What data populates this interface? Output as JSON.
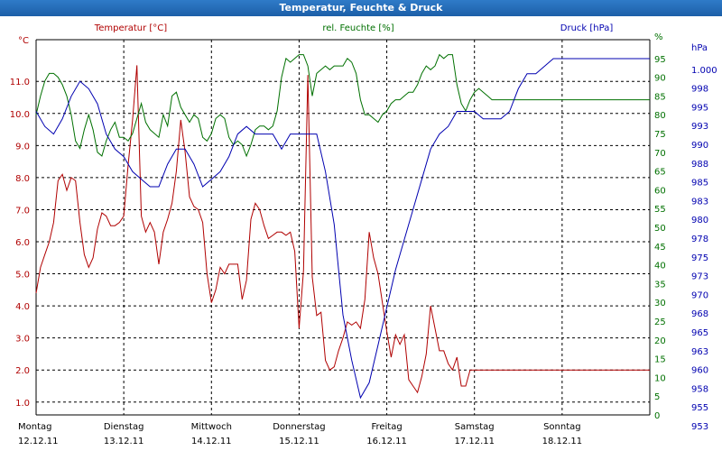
{
  "window": {
    "title": "Temperatur, Feuchte & Druck"
  },
  "colors": {
    "temperature": "#b00000",
    "humidity": "#007000",
    "pressure": "#0000b0",
    "grid": "#000000"
  },
  "chart_data": {
    "type": "line",
    "title": "Temperatur, Feuchte & Druck",
    "x_ticks": [
      {
        "day": "Montag",
        "date": "12.12.11"
      },
      {
        "day": "Dienstag",
        "date": "13.12.11"
      },
      {
        "day": "Mittwoch",
        "date": "14.12.11"
      },
      {
        "day": "Donnerstag",
        "date": "15.12.11"
      },
      {
        "day": "Freitag",
        "date": "16.12.11"
      },
      {
        "day": "Samstag",
        "date": "17.12.11"
      },
      {
        "day": "Sonntag",
        "date": "18.12.11"
      }
    ],
    "xlim": [
      0,
      7.0
    ],
    "grid": true,
    "axes": {
      "left": {
        "unit": "°C",
        "label": "Temperatur [°C]",
        "ylim": [
          0.6,
          12.3
        ],
        "ticks": [
          "1.0",
          "2.0",
          "3.0",
          "4.0",
          "5.0",
          "6.0",
          "7.0",
          "8.0",
          "9.0",
          "10.0",
          "11.0"
        ]
      },
      "middle": {
        "unit": "%",
        "label": "rel. Feuchte [%]",
        "ylim": [
          0,
          100
        ],
        "ticks": [
          "0",
          "5",
          "10",
          "15",
          "20",
          "25",
          "30",
          "35",
          "40",
          "45",
          "50",
          "55",
          "60",
          "65",
          "70",
          "75",
          "80",
          "85",
          "90",
          "95",
          "%"
        ]
      },
      "right": {
        "unit": "hPa",
        "label": "Druck [hPa]",
        "ticks": [
          "953",
          "955",
          "958",
          "960",
          "963",
          "965",
          "968",
          "970",
          "973",
          "975",
          "978",
          "980",
          "983",
          "985",
          "988",
          "990",
          "993",
          "995",
          "998",
          "1.000",
          "hPa"
        ]
      }
    },
    "series": [
      {
        "name": "Temperatur [°C]",
        "axis": "left",
        "x": [
          0.0,
          0.05,
          0.1,
          0.15,
          0.2,
          0.25,
          0.3,
          0.35,
          0.4,
          0.45,
          0.5,
          0.55,
          0.6,
          0.65,
          0.7,
          0.75,
          0.8,
          0.85,
          0.9,
          0.95,
          1.0,
          1.05,
          1.1,
          1.15,
          1.2,
          1.25,
          1.3,
          1.35,
          1.4,
          1.45,
          1.5,
          1.55,
          1.6,
          1.65,
          1.7,
          1.75,
          1.8,
          1.85,
          1.9,
          1.95,
          2.0,
          2.05,
          2.1,
          2.15,
          2.2,
          2.25,
          2.3,
          2.35,
          2.4,
          2.45,
          2.5,
          2.55,
          2.6,
          2.65,
          2.7,
          2.75,
          2.8,
          2.85,
          2.9,
          2.95,
          3.0,
          3.05,
          3.1,
          3.15,
          3.2,
          3.25,
          3.3,
          3.35,
          3.4,
          3.45,
          3.5,
          3.55,
          3.6,
          3.65,
          3.7,
          3.75,
          3.8,
          3.85,
          3.9,
          3.95,
          4.0,
          4.05,
          4.1,
          4.15,
          4.2,
          4.25,
          4.3,
          4.35,
          4.4,
          4.45,
          4.5,
          4.55,
          4.6,
          4.65,
          4.7,
          4.75,
          4.8,
          4.85,
          4.9,
          4.95,
          5.0,
          5.05,
          5.1,
          5.15,
          5.2,
          5.25,
          5.3,
          5.35,
          5.4,
          5.45,
          5.5,
          5.55,
          5.6,
          5.65,
          5.7,
          5.75,
          5.8,
          5.85,
          5.9,
          5.95,
          6.0,
          6.05,
          6.1,
          6.15,
          6.2,
          6.25,
          6.3,
          6.35,
          6.4,
          6.45,
          6.5,
          6.55,
          6.6,
          6.65,
          6.7,
          6.75,
          6.8,
          6.85,
          6.9,
          6.95,
          7.0
        ],
        "values": [
          4.4,
          5.2,
          5.6,
          6.0,
          6.6,
          7.9,
          8.1,
          7.6,
          8.0,
          7.9,
          6.6,
          5.6,
          5.2,
          5.5,
          6.4,
          6.9,
          6.8,
          6.5,
          6.5,
          6.6,
          6.8,
          8.4,
          9.8,
          11.5,
          6.8,
          6.3,
          6.6,
          6.3,
          5.3,
          6.3,
          6.7,
          7.2,
          8.2,
          9.8,
          8.8,
          7.4,
          7.1,
          7.0,
          6.6,
          5.0,
          4.1,
          4.5,
          5.2,
          5.0,
          5.3,
          5.3,
          5.3,
          4.2,
          4.8,
          6.7,
          7.2,
          7.0,
          6.5,
          6.1,
          6.2,
          6.3,
          6.3,
          6.2,
          6.3,
          5.7,
          3.3,
          5.1,
          11.2,
          4.9,
          3.7,
          3.8,
          2.3,
          2.0,
          2.1,
          2.6,
          3.0,
          3.5,
          3.4,
          3.5,
          3.3,
          4.2,
          6.3,
          5.5,
          5.0,
          4.1,
          3.2,
          2.4,
          3.1,
          2.8,
          3.1,
          1.7,
          1.5,
          1.3,
          1.8,
          2.5,
          4.0,
          3.3,
          2.6,
          2.6,
          2.2,
          2.0,
          2.4,
          1.5,
          1.5,
          2.0,
          2.0,
          2.0,
          2.0,
          2.0,
          2.0,
          2.0,
          2.0,
          2.0,
          2.0,
          2.0,
          2.0,
          2.0,
          2.0,
          2.0,
          2.0,
          2.0,
          2.0,
          2.0,
          2.0,
          2.0,
          2.0,
          2.0,
          2.0,
          2.0,
          2.0,
          2.0,
          2.0,
          2.0,
          2.0,
          2.0,
          2.0,
          2.0,
          2.0,
          2.0,
          2.0,
          2.0,
          2.0,
          2.0,
          2.0,
          2.0,
          2.0
        ]
      },
      {
        "name": "rel. Feuchte [%]",
        "axis": "middle",
        "x": [
          0.0,
          0.05,
          0.1,
          0.15,
          0.2,
          0.25,
          0.3,
          0.35,
          0.4,
          0.45,
          0.5,
          0.55,
          0.6,
          0.65,
          0.7,
          0.75,
          0.8,
          0.85,
          0.9,
          0.95,
          1.0,
          1.05,
          1.1,
          1.15,
          1.2,
          1.25,
          1.3,
          1.35,
          1.4,
          1.45,
          1.5,
          1.55,
          1.6,
          1.65,
          1.7,
          1.75,
          1.8,
          1.85,
          1.9,
          1.95,
          2.0,
          2.05,
          2.1,
          2.15,
          2.2,
          2.25,
          2.3,
          2.35,
          2.4,
          2.45,
          2.5,
          2.55,
          2.6,
          2.65,
          2.7,
          2.75,
          2.8,
          2.85,
          2.9,
          2.95,
          3.0,
          3.05,
          3.1,
          3.15,
          3.2,
          3.25,
          3.3,
          3.35,
          3.4,
          3.45,
          3.5,
          3.55,
          3.6,
          3.65,
          3.7,
          3.75,
          3.8,
          3.85,
          3.9,
          3.95,
          4.0,
          4.05,
          4.1,
          4.15,
          4.2,
          4.25,
          4.3,
          4.35,
          4.4,
          4.45,
          4.5,
          4.55,
          4.6,
          4.65,
          4.7,
          4.75,
          4.8,
          4.85,
          4.9,
          4.95,
          5.0,
          5.05,
          5.1,
          5.15,
          5.2,
          5.25,
          5.3,
          5.35,
          5.4,
          5.45,
          5.5,
          5.55,
          5.6,
          5.65,
          5.7,
          5.75,
          5.8,
          5.85,
          5.9,
          5.95,
          6.0,
          6.05,
          6.1,
          6.15,
          6.2,
          6.25,
          6.3,
          6.35,
          6.4,
          6.45,
          6.5,
          6.55,
          6.6,
          6.65,
          6.7,
          6.75,
          6.8,
          6.85,
          6.9,
          6.95,
          7.0
        ],
        "values": [
          80,
          85,
          89,
          91,
          91,
          90,
          88,
          85,
          80,
          73,
          71,
          76,
          80,
          76,
          70,
          69,
          73,
          76,
          78,
          74,
          74,
          73,
          75,
          79,
          83,
          78,
          76,
          75,
          74,
          80,
          77,
          85,
          86,
          82,
          80,
          78,
          80,
          79,
          74,
          73,
          75,
          79,
          80,
          79,
          74,
          72,
          73,
          72,
          69,
          72,
          76,
          77,
          77,
          76,
          77,
          81,
          90,
          95,
          94,
          95,
          96,
          96,
          93,
          85,
          91,
          92,
          93,
          92,
          93,
          93,
          93,
          95,
          94,
          91,
          84,
          80,
          80,
          79,
          78,
          80,
          81,
          83,
          84,
          84,
          85,
          86,
          86,
          88,
          91,
          93,
          92,
          93,
          96,
          95,
          96,
          96,
          88,
          83,
          81,
          84,
          86,
          87,
          86,
          85,
          84,
          84,
          84,
          84,
          84,
          84,
          84,
          84,
          84,
          84,
          84,
          84,
          84,
          84,
          84,
          84,
          84,
          84,
          84,
          84,
          84,
          84,
          84,
          84,
          84,
          84,
          84,
          84,
          84,
          84,
          84,
          84,
          84,
          84,
          84,
          84,
          84
        ]
      },
      {
        "name": "Druck [hPa]",
        "axis": "right",
        "x": [
          0.0,
          0.1,
          0.2,
          0.3,
          0.4,
          0.5,
          0.6,
          0.7,
          0.8,
          0.9,
          1.0,
          1.1,
          1.2,
          1.3,
          1.4,
          1.5,
          1.6,
          1.7,
          1.8,
          1.9,
          2.0,
          2.1,
          2.2,
          2.3,
          2.4,
          2.5,
          2.6,
          2.7,
          2.8,
          2.9,
          3.0,
          3.1,
          3.2,
          3.3,
          3.4,
          3.5,
          3.6,
          3.7,
          3.8,
          3.9,
          4.0,
          4.1,
          4.2,
          4.3,
          4.4,
          4.5,
          4.6,
          4.7,
          4.8,
          4.9,
          5.0,
          5.1,
          5.2,
          5.3,
          5.4,
          5.5,
          5.6,
          5.7,
          5.8,
          5.9,
          6.0,
          6.1,
          6.2,
          6.3,
          6.4,
          6.5,
          6.6,
          6.7,
          6.8,
          6.9,
          7.0
        ],
        "values": [
          993,
          991,
          990,
          992,
          995,
          997,
          996,
          994,
          990,
          988,
          987,
          985,
          984,
          983,
          983,
          986,
          988,
          988,
          986,
          983,
          984,
          985,
          987,
          990,
          991,
          990,
          990,
          990,
          988,
          990,
          990,
          990,
          990,
          985,
          978,
          966,
          960,
          955,
          957,
          962,
          967,
          972,
          976,
          980,
          984,
          988,
          990,
          991,
          993,
          993,
          993,
          992,
          992,
          992,
          993,
          996,
          998,
          998,
          999,
          1000,
          1000,
          1000,
          1000,
          1000,
          1000,
          1000,
          1000,
          1000,
          1000,
          1000,
          1000
        ]
      }
    ]
  }
}
